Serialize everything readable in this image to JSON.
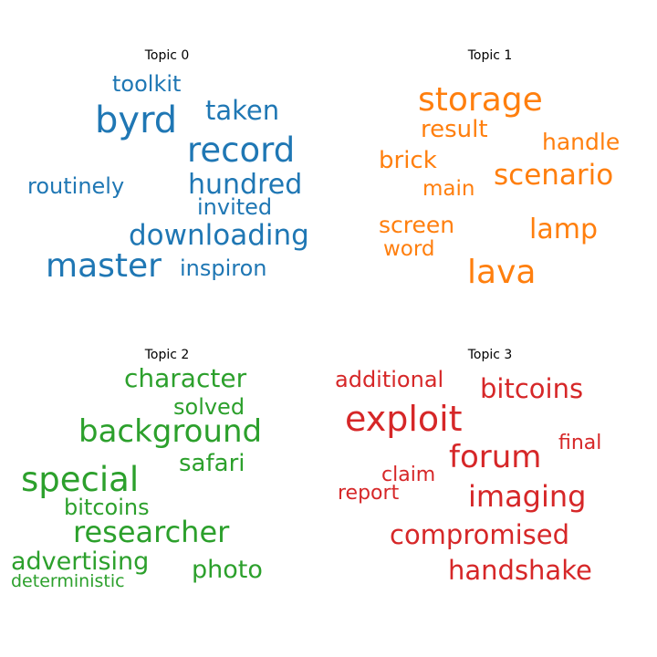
{
  "chart_data": [
    {
      "type": "wordcloud",
      "title": "Topic 0",
      "color": "#1f77b4",
      "words": [
        {
          "text": "byrd",
          "weight": 1.0
        },
        {
          "text": "record",
          "weight": 0.88
        },
        {
          "text": "master",
          "weight": 0.86
        },
        {
          "text": "downloading",
          "weight": 0.8
        },
        {
          "text": "hundred",
          "weight": 0.78
        },
        {
          "text": "taken",
          "weight": 0.74
        },
        {
          "text": "toolkit",
          "weight": 0.66
        },
        {
          "text": "invited",
          "weight": 0.64
        },
        {
          "text": "routinely",
          "weight": 0.63
        },
        {
          "text": "inspiron",
          "weight": 0.63
        }
      ]
    },
    {
      "type": "wordcloud",
      "title": "Topic 1",
      "color": "#ff7f0e",
      "words": [
        {
          "text": "storage",
          "weight": 1.0
        },
        {
          "text": "lava",
          "weight": 0.98
        },
        {
          "text": "scenario",
          "weight": 0.85
        },
        {
          "text": "lamp",
          "weight": 0.8
        },
        {
          "text": "result",
          "weight": 0.74
        },
        {
          "text": "brick",
          "weight": 0.74
        },
        {
          "text": "screen",
          "weight": 0.72
        },
        {
          "text": "handle",
          "weight": 0.72
        },
        {
          "text": "main",
          "weight": 0.68
        },
        {
          "text": "word",
          "weight": 0.68
        }
      ]
    },
    {
      "type": "wordcloud",
      "title": "Topic 2",
      "color": "#2ca02c",
      "words": [
        {
          "text": "special",
          "weight": 1.0
        },
        {
          "text": "background",
          "weight": 0.92
        },
        {
          "text": "researcher",
          "weight": 0.88
        },
        {
          "text": "character",
          "weight": 0.8
        },
        {
          "text": "advertising",
          "weight": 0.76
        },
        {
          "text": "photo",
          "weight": 0.76
        },
        {
          "text": "safari",
          "weight": 0.74
        },
        {
          "text": "solved",
          "weight": 0.7
        },
        {
          "text": "bitcoins",
          "weight": 0.68
        },
        {
          "text": "deterministic",
          "weight": 0.55
        }
      ]
    },
    {
      "type": "wordcloud",
      "title": "Topic 3",
      "color": "#d62728",
      "words": [
        {
          "text": "exploit",
          "weight": 1.0
        },
        {
          "text": "forum",
          "weight": 0.92
        },
        {
          "text": "imaging",
          "weight": 0.86
        },
        {
          "text": "bitcoins",
          "weight": 0.8
        },
        {
          "text": "compromised",
          "weight": 0.8
        },
        {
          "text": "handshake",
          "weight": 0.8
        },
        {
          "text": "additional",
          "weight": 0.7
        },
        {
          "text": "claim",
          "weight": 0.64
        },
        {
          "text": "final",
          "weight": 0.64
        },
        {
          "text": "report",
          "weight": 0.6
        }
      ]
    }
  ]
}
